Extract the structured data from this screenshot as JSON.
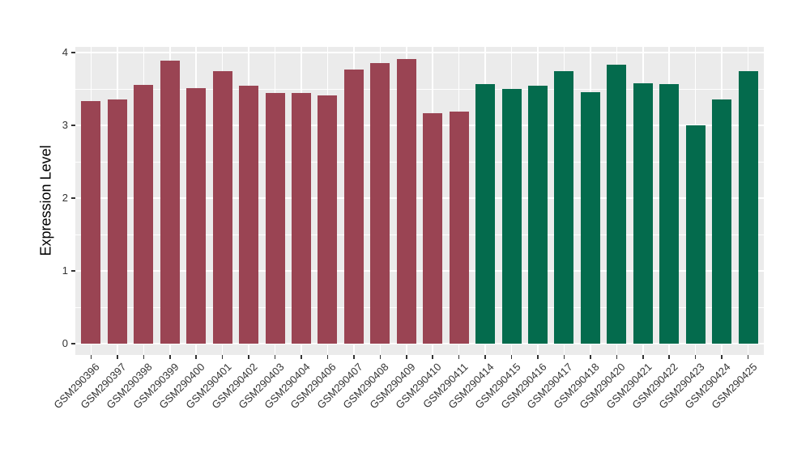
{
  "chart_data": {
    "type": "bar",
    "title": "",
    "xlabel": "",
    "ylabel": "Expression Level",
    "ylim": [
      0,
      4.08
    ],
    "yticks": [
      0,
      1,
      2,
      3,
      4
    ],
    "yticks_minor": [
      0.5,
      1.5,
      2.5,
      3.5
    ],
    "grid": "on",
    "legend": "none",
    "panel_background": "#EBEBEB",
    "grid_color": "#FFFFFF",
    "axis_text_color": "#333333",
    "group_colors": {
      "maroon": "#9A4453",
      "green": "#046B4D"
    },
    "categories": [
      "GSM290396",
      "GSM290397",
      "GSM290398",
      "GSM290399",
      "GSM290400",
      "GSM290401",
      "GSM290402",
      "GSM290403",
      "GSM290404",
      "GSM290406",
      "GSM290407",
      "GSM290408",
      "GSM290409",
      "GSM290410",
      "GSM290411",
      "GSM290414",
      "GSM290415",
      "GSM290416",
      "GSM290417",
      "GSM290418",
      "GSM290420",
      "GSM290421",
      "GSM290422",
      "GSM290423",
      "GSM290424",
      "GSM290425"
    ],
    "values": [
      3.33,
      3.36,
      3.56,
      3.89,
      3.51,
      3.75,
      3.54,
      3.44,
      3.45,
      3.41,
      3.77,
      3.86,
      3.91,
      3.17,
      3.19,
      3.57,
      3.5,
      3.55,
      3.74,
      3.46,
      3.83,
      3.58,
      3.57,
      3.0,
      3.36,
      3.74
    ],
    "bar_groups": [
      "maroon",
      "maroon",
      "maroon",
      "maroon",
      "maroon",
      "maroon",
      "maroon",
      "maroon",
      "maroon",
      "maroon",
      "maroon",
      "maroon",
      "maroon",
      "maroon",
      "maroon",
      "green",
      "green",
      "green",
      "green",
      "green",
      "green",
      "green",
      "green",
      "green",
      "green",
      "green"
    ]
  }
}
